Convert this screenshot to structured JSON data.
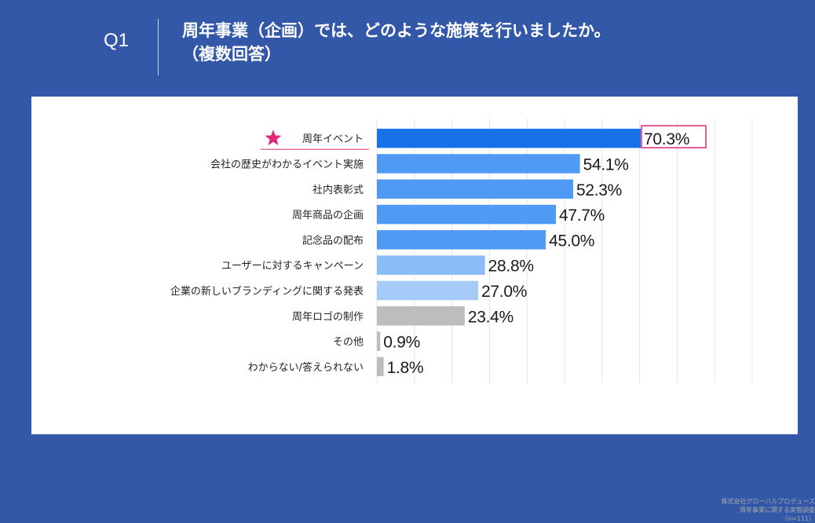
{
  "header": {
    "question_label": "Q1",
    "title_line1": "周年事業（企画）では、どのような施策を行いましたか。",
    "title_line2": "（複数回答）"
  },
  "colors": {
    "background": "#3358a8",
    "panel": "#ffffff",
    "bar_dark": "#1672e6",
    "bar_mid": "#4f9af5",
    "bar_light": "#8bbcf7",
    "bar_lighter": "#a7cbf9",
    "bar_gray": "#bdbdbd",
    "highlight": "#e0287a"
  },
  "chart_data": {
    "type": "bar",
    "orientation": "horizontal",
    "unit": "%",
    "categories": [
      "周年イベント",
      "会社の歴史がわかるイベント実施",
      "社内表彰式",
      "周年商品の企画",
      "記念品の配布",
      "ユーザーに対するキャンペーン",
      "企業の新しいブランディングに関する発表",
      "周年ロゴの制作",
      "その他",
      "わからない/答えられない"
    ],
    "values": [
      70.3,
      54.1,
      52.3,
      47.7,
      45.0,
      28.8,
      27.0,
      23.4,
      0.9,
      1.8
    ],
    "value_labels": [
      "70.3%",
      "54.1%",
      "52.3%",
      "47.7%",
      "45.0%",
      "28.8%",
      "27.0%",
      "23.4%",
      "0.9%",
      "1.8%"
    ],
    "bar_colors": [
      "#1672e6",
      "#4f9af5",
      "#4f9af5",
      "#4f9af5",
      "#4f9af5",
      "#8bbcf7",
      "#a7cbf9",
      "#bdbdbd",
      "#bdbdbd",
      "#bdbdbd"
    ],
    "highlighted_index": 0,
    "xlim": [
      0,
      100
    ],
    "grid": true
  },
  "source": {
    "line1": "株式会社グローバルプロデュース",
    "line2": "周年事業に関する実態調査",
    "line3": "（n=111）"
  }
}
